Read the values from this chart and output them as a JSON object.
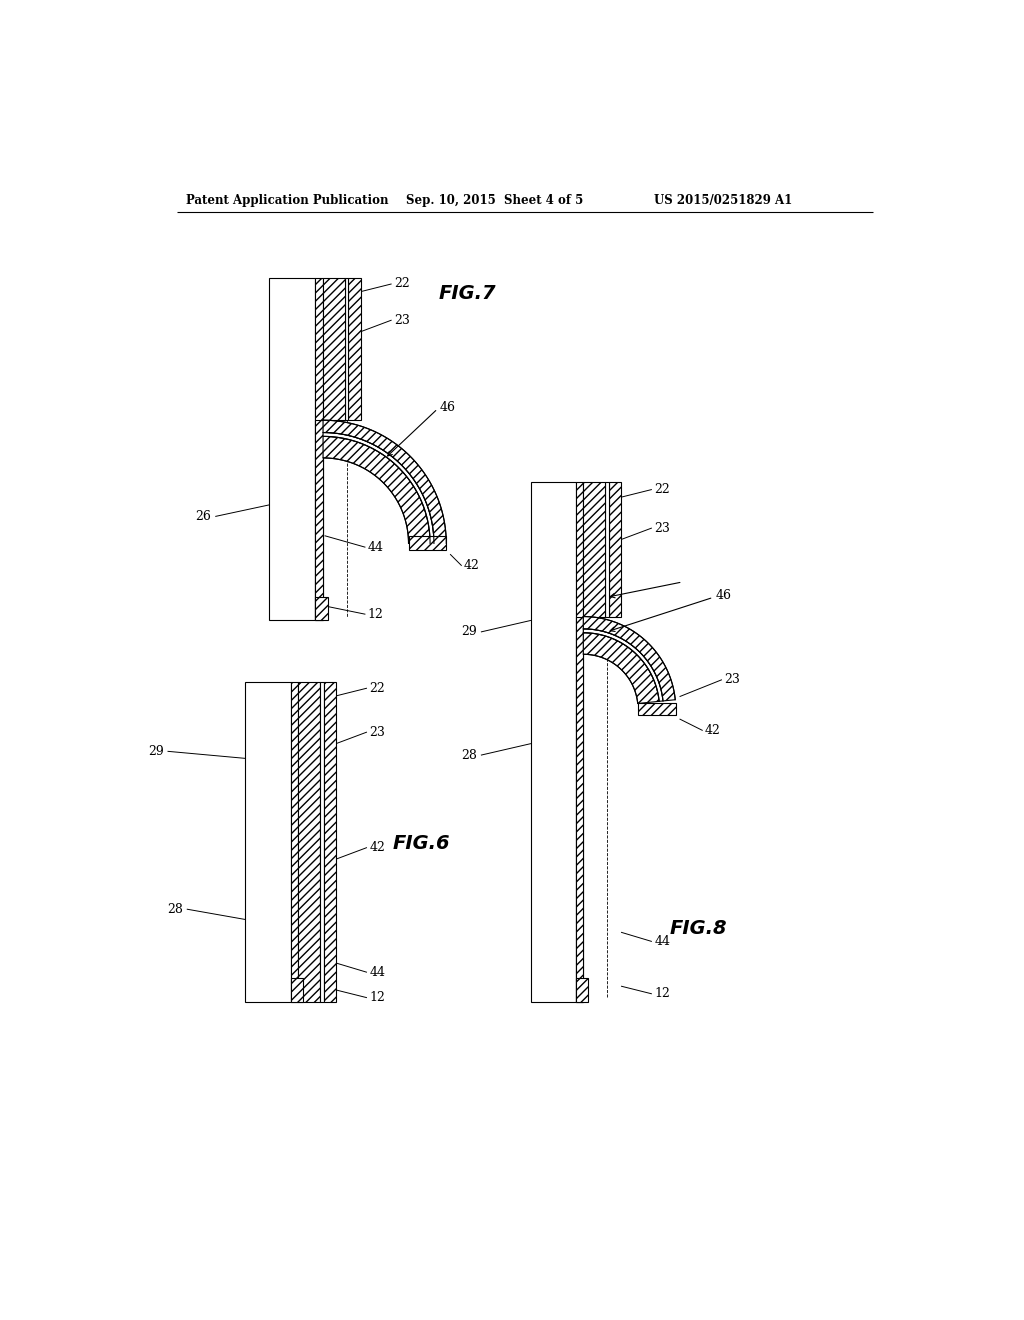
{
  "bg_color": "#ffffff",
  "header_left": "Patent Application Publication",
  "header_mid": "Sep. 10, 2015  Sheet 4 of 5",
  "header_right": "US 2015/0251829 A1",
  "fig6_label": "FIG.6",
  "fig7_label": "FIG.7",
  "fig8_label": "FIG.8",
  "line_color": "#000000"
}
